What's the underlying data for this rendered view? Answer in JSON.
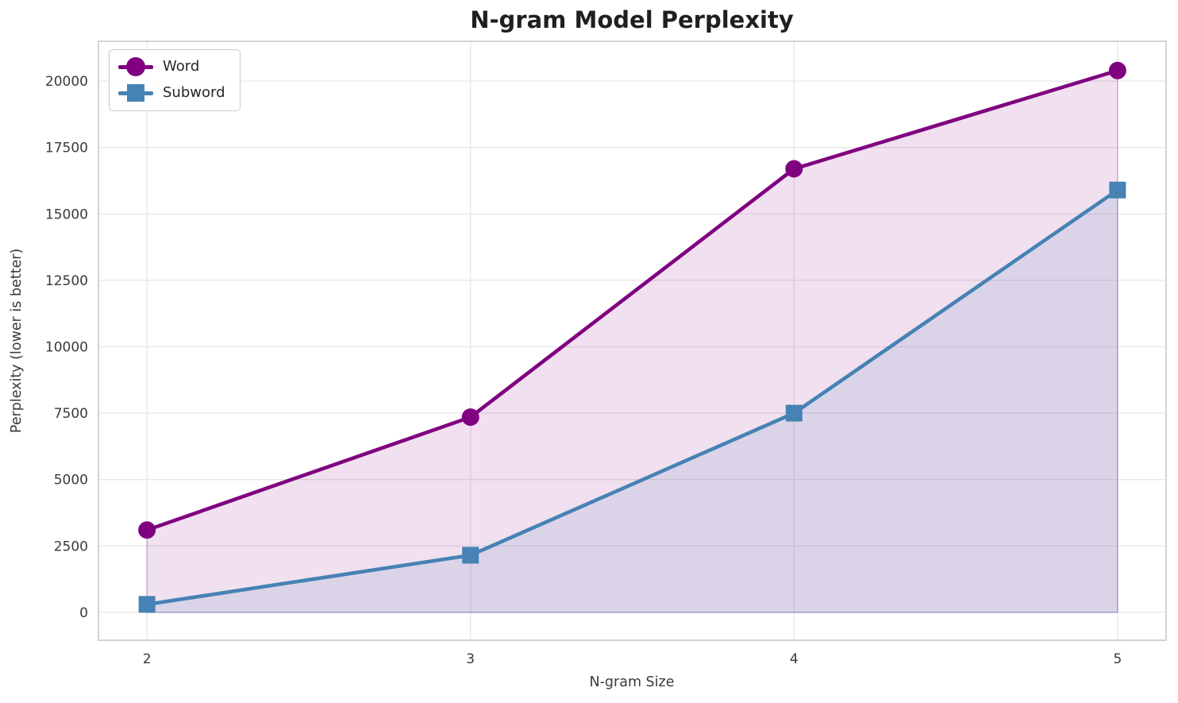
{
  "chart_data": {
    "type": "line",
    "title": "N-gram Model Perplexity",
    "xlabel": "N-gram Size",
    "ylabel": "Perplexity (lower is better)",
    "x": [
      2,
      3,
      4,
      5
    ],
    "series": [
      {
        "name": "Word",
        "marker": "circle",
        "color": "#800080",
        "values": [
          3100,
          7350,
          16700,
          20400
        ]
      },
      {
        "name": "Subword",
        "marker": "square",
        "color": "#4682B4",
        "values": [
          300,
          2150,
          7500,
          15900
        ]
      }
    ],
    "fill": "area-to-zero",
    "fill_alpha": 0.12,
    "xticks": [
      2,
      3,
      4,
      5
    ],
    "yticks": [
      0,
      2500,
      5000,
      7500,
      10000,
      12500,
      15000,
      17500,
      20000
    ],
    "xlim": [
      1.85,
      5.15
    ],
    "ylim": [
      -1050,
      21500
    ],
    "grid": true,
    "grid_color": "#e9e9e9",
    "spine_color": "#cfcfcf",
    "legend_position": "upper-left"
  }
}
